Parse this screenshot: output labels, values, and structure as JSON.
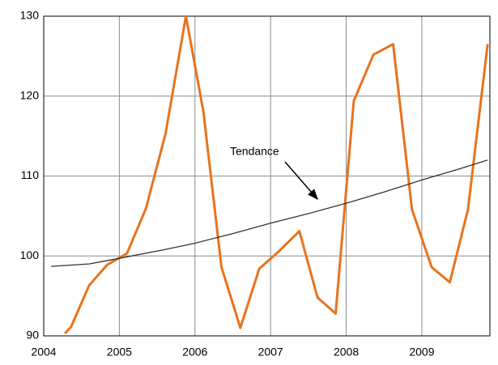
{
  "chart_data": {
    "type": "line",
    "series": [
      {
        "color": "#e8731c",
        "width": 3,
        "x": [
          2004.28,
          2004.36,
          2004.6,
          2004.84,
          2005.1,
          2005.35,
          2005.61,
          2005.88,
          2006.11,
          2006.35,
          2006.6,
          2006.85,
          2007.1,
          2007.38,
          2007.62,
          2007.86,
          2008.1,
          2008.36,
          2008.62,
          2008.87,
          2009.13,
          2009.37,
          2009.61,
          2009.87
        ],
        "values": [
          90.3,
          91.1,
          96.3,
          98.9,
          100.3,
          105.9,
          115.3,
          130,
          118.1,
          98.6,
          91.0,
          98.4,
          100.5,
          103.1,
          94.8,
          92.8,
          119.4,
          125.2,
          126.5,
          105.8,
          98.6,
          96.7,
          105.8,
          126.5
        ]
      },
      {
        "color": "#333333",
        "width": 1.3,
        "x": [
          2004.1,
          2004.6,
          2005.0,
          2005.6,
          2006.0,
          2006.5,
          2007.0,
          2007.5,
          2008.0,
          2008.5,
          2009.0,
          2009.5,
          2009.87
        ],
        "values": [
          98.7,
          99.0,
          99.7,
          100.8,
          101.6,
          102.8,
          104.1,
          105.3,
          106.6,
          108.0,
          109.5,
          110.9,
          112.0
        ]
      }
    ],
    "annotation": "Tendance",
    "xlim": [
      2004,
      2009.9
    ],
    "xticks": [
      2004,
      2005,
      2006,
      2007,
      2008,
      2009
    ],
    "ylim": [
      90,
      130
    ],
    "yticks": [
      90,
      100,
      110,
      120,
      130
    ],
    "grid": true
  }
}
